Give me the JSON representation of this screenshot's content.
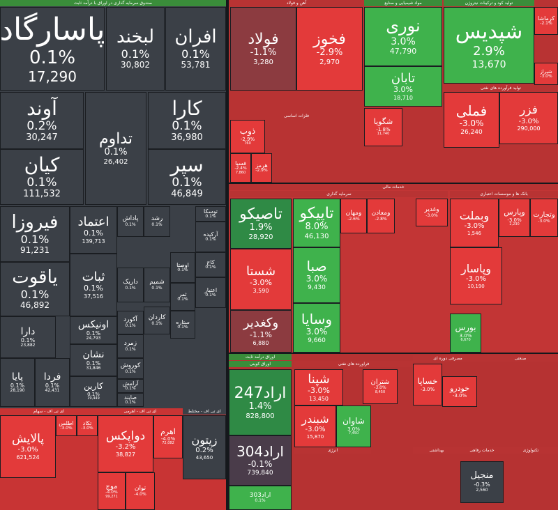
{
  "headers": [
    "صندوق سرمایه گذاری در اوراق با درآمد ثابت",
    "آهن و فولاد",
    "مواد شیمیایی و صنایع",
    "تولید کود و ترکیبات نیتروژن",
    "تولید فرآورده های نفتی",
    "فلزات اساسی",
    "خدمات مالی",
    "سرمایه گذاری",
    "بانک ها و موسسات اعتباری",
    "ای تی اف - سهام",
    "ای تی اف - اهرمی",
    "ای تی اف - مختلط",
    "اوراق درآمد ثابت",
    "اوراق کوپنی",
    "فراورده های نفتی",
    "مصرفی دوره ای",
    "صنعتی",
    "انرژی",
    "خدمات رفاهی",
    "تکنولوژی",
    "بهداشتی"
  ],
  "tiles": [
    {
      "name": "پاسارگاد",
      "change": "0.1%",
      "value": "17,290"
    },
    {
      "name": "لبخند",
      "change": "0.1%",
      "value": "30,802"
    },
    {
      "name": "افران",
      "change": "0.1%",
      "value": "53,781"
    },
    {
      "name": "آوند",
      "change": "0.2%",
      "value": "30,247"
    },
    {
      "name": "کیان",
      "change": "0.1%",
      "value": "111,532"
    },
    {
      "name": "تداوم",
      "change": "0.1%",
      "value": "26,402"
    },
    {
      "name": "کارا",
      "change": "0.1%",
      "value": "36,980"
    },
    {
      "name": "سپر",
      "change": "0.1%",
      "value": "46,849"
    },
    {
      "name": "فیروزا",
      "change": "0.1%",
      "value": "91,231"
    },
    {
      "name": "یاقوت",
      "change": "0.1%",
      "value": "46,892"
    },
    {
      "name": "اعتماد",
      "change": "0.1%",
      "value": "139,713"
    },
    {
      "name": "ثبات",
      "change": "0.1%",
      "value": "37,516"
    },
    {
      "name": "دارا",
      "change": "0.1%",
      "value": "23,882"
    },
    {
      "name": "پایا",
      "change": "0.1%",
      "value": "28,190"
    },
    {
      "name": "فردا",
      "change": "0.1%",
      "value": "42,431"
    },
    {
      "name": "اونیکس",
      "change": "0.1%",
      "value": "24,793"
    },
    {
      "name": "نشان",
      "change": "0.1%",
      "value": "31,846"
    },
    {
      "name": "کارین",
      "change": "0.1%",
      "value": "19,449"
    },
    {
      "name": "پاداش",
      "change": "0.1%"
    },
    {
      "name": "رشد",
      "change": "0.1%"
    },
    {
      "name": "توسکا",
      "change": "0.1%"
    },
    {
      "name": "آرکیده",
      "change": "0.1%"
    },
    {
      "name": "اوصتا",
      "change": "0.1%"
    },
    {
      "name": "کاج",
      "change": "0.1%"
    },
    {
      "name": "داریک",
      "change": "0.1%"
    },
    {
      "name": "شمیم",
      "change": "0.1%"
    },
    {
      "name": "ثمر",
      "change": "0.1%"
    },
    {
      "name": "اعتبار",
      "change": "0.1%"
    },
    {
      "name": "آکورد",
      "change": "0.1%"
    },
    {
      "name": "کاردان",
      "change": "0.1%"
    },
    {
      "name": "زمرد",
      "change": "0.1%"
    },
    {
      "name": "ستاره",
      "change": "0.1%"
    },
    {
      "name": "کوروش",
      "change": "0.1%"
    },
    {
      "name": "آرامش",
      "change": "0.1%"
    },
    {
      "name": "صایند",
      "change": "0.1%"
    },
    {
      "name": "پالایش",
      "change": "-3.0%",
      "value": "621,524"
    },
    {
      "name": "اطلس",
      "change": "-3.0%"
    },
    {
      "name": "تکاد",
      "change": "-3.0%"
    },
    {
      "name": "دواپکس",
      "change": "-3.2%",
      "value": "38,827"
    },
    {
      "name": "اهرم",
      "change": "-4.0%",
      "value": "72,082"
    },
    {
      "name": "زیتون",
      "change": "0.2%",
      "value": "43,650"
    },
    {
      "name": "موج",
      "change": "-4.0%",
      "value": "99,271"
    },
    {
      "name": "توان",
      "change": "-4.0%"
    },
    {
      "name": "فولاد",
      "change": "-1.1%",
      "value": "3,280"
    },
    {
      "name": "فخوز",
      "change": "-2.9%",
      "value": "2,970"
    },
    {
      "name": "ذوب",
      "change": "-2.9%",
      "value": "760"
    },
    {
      "name": "فسپا",
      "change": "-2.4%",
      "value": "7,860"
    },
    {
      "name": "هرمز",
      "change": "-2.9%"
    },
    {
      "name": "نوری",
      "change": "3.0%",
      "value": "47,790"
    },
    {
      "name": "تابان",
      "change": "3.0%",
      "value": "18,710"
    },
    {
      "name": "شگویا",
      "change": "-1.8%",
      "value": "11,740"
    },
    {
      "name": "شپدیس",
      "change": "2.9%",
      "value": "13,670"
    },
    {
      "name": "کرماشا",
      "change": "-2.1%"
    },
    {
      "name": "شیراز",
      "change": "-3.0%"
    },
    {
      "name": "فملی",
      "change": "-3.0%",
      "value": "26,240"
    },
    {
      "name": "فزر",
      "change": "-3.0%",
      "value": "290,000"
    },
    {
      "name": "تاصیکو",
      "change": "1.9%",
      "value": "28,920"
    },
    {
      "name": "شستا",
      "change": "-3.0%",
      "value": "3,590"
    },
    {
      "name": "وکغدیر",
      "change": "-1.1%",
      "value": "6,880"
    },
    {
      "name": "تاپیکو",
      "change": "8.0%",
      "value": "46,130"
    },
    {
      "name": "صبا",
      "change": "3.0%",
      "value": "9,430"
    },
    {
      "name": "وسایا",
      "change": "3.0%",
      "value": "9,660"
    },
    {
      "name": "ومهان",
      "change": "-2.6%"
    },
    {
      "name": "ومعادن",
      "change": "-2.8%"
    },
    {
      "name": "وغدیر",
      "change": "-3.0%"
    },
    {
      "name": "وبملت",
      "change": "-3.0%",
      "value": "1,546"
    },
    {
      "name": "وپاسار",
      "change": "-3.0%",
      "value": "10,190"
    },
    {
      "name": "وپارس",
      "change": "-3.0%",
      "value": "2,230"
    },
    {
      "name": "وتجارت",
      "change": "-3.0%"
    },
    {
      "name": "بورس",
      "change": "3.0%",
      "value": "6,670"
    },
    {
      "name": "اراد247",
      "change": "1.4%",
      "value": "828,800"
    },
    {
      "name": "اراد304",
      "change": "-0.1%",
      "value": "739,840"
    },
    {
      "name": "اراد303",
      "change": "0.1%"
    },
    {
      "name": "شپنا",
      "change": "-3.0%",
      "value": "13,450"
    },
    {
      "name": "شبندر",
      "change": "-3.0%",
      "value": "15,870"
    },
    {
      "name": "شاوان",
      "change": "3.0%",
      "value": "7,450"
    },
    {
      "name": "شتران",
      "change": "-3.0%",
      "value": "8,450"
    },
    {
      "name": "خساپا",
      "change": "-3.0%"
    },
    {
      "name": "خودرو",
      "change": "-3.0%"
    },
    {
      "name": "منجیل",
      "change": "-0.3%",
      "value": "2,560"
    }
  ]
}
